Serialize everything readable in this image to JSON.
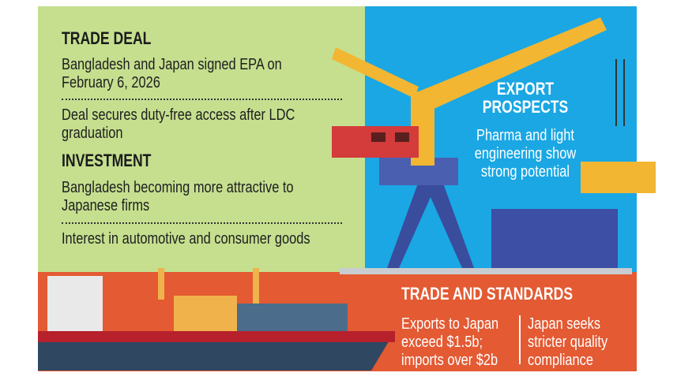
{
  "left": {
    "sections": [
      {
        "heading": "TRADE DEAL",
        "items": [
          "Bangladesh and Japan signed EPA on February 6, 2026",
          "Deal secures duty-free access after LDC graduation"
        ]
      },
      {
        "heading": "INVESTMENT",
        "items": [
          "Bangladesh becoming more attractive to Japanese firms",
          "Interest in automotive and consumer goods"
        ]
      }
    ]
  },
  "export_prospects": {
    "heading": "EXPORT PROSPECTS",
    "text": "Pharma and light engineering show strong potential"
  },
  "trade_standards": {
    "heading": "TRADE AND STANDARDS",
    "columns": [
      "Exports to Japan exceed $1.5b; imports over $2b",
      "Japan seeks stricter quality compliance"
    ]
  }
}
